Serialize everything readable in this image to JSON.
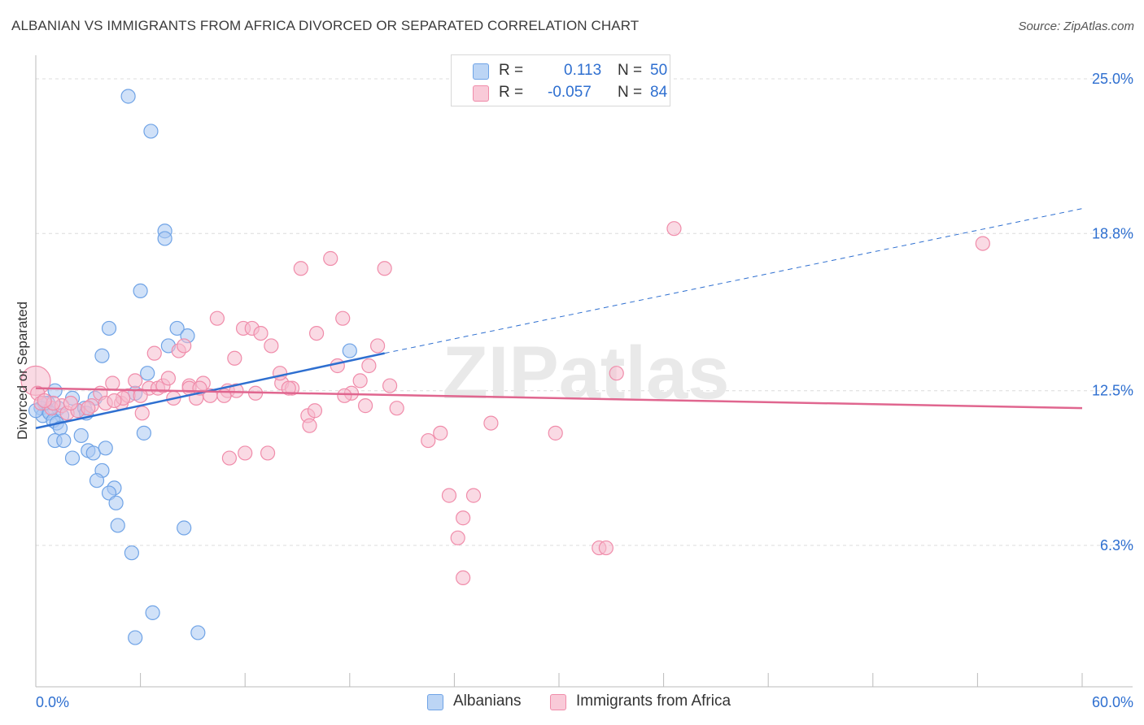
{
  "title": "ALBANIAN VS IMMIGRANTS FROM AFRICA DIVORCED OR SEPARATED CORRELATION CHART",
  "source": "Source: ZipAtlas.com",
  "watermark": "ZIPatlas",
  "legend": {
    "r_label": "R =",
    "n_label": "N =",
    "rows": [
      {
        "r": "0.113",
        "n": "50"
      },
      {
        "r": "-0.057",
        "n": "84"
      }
    ]
  },
  "chart_data": {
    "type": "scatter",
    "ylabel": "Divorced or Separated",
    "xlim": [
      0,
      60
    ],
    "ylim": [
      0,
      26
    ],
    "x_tick_labels": [
      {
        "value": 0,
        "label": "0.0%"
      },
      {
        "value": 60,
        "label": "60.0%"
      }
    ],
    "y_tick_labels": [
      {
        "value": 25.0,
        "label": "25.0%"
      },
      {
        "value": 18.8,
        "label": "18.8%"
      },
      {
        "value": 12.5,
        "label": "12.5%"
      },
      {
        "value": 6.3,
        "label": "6.3%"
      }
    ],
    "series": [
      {
        "name": "Albanians",
        "color": "#6fa3e6",
        "fill": "#a9c9f2",
        "line_color": "#2e6fd0",
        "trend": {
          "x0": 0,
          "y0": 11.0,
          "x1": 20,
          "y1": 14.0,
          "dash_to_x": 60,
          "dash_to_y": 19.8
        },
        "points": [
          [
            5.3,
            24.3
          ],
          [
            6.6,
            22.9
          ],
          [
            7.4,
            18.9
          ],
          [
            7.4,
            18.6
          ],
          [
            6.0,
            16.5
          ],
          [
            4.2,
            15.0
          ],
          [
            8.1,
            15.0
          ],
          [
            7.6,
            14.3
          ],
          [
            8.7,
            14.7
          ],
          [
            3.8,
            13.9
          ],
          [
            18.0,
            14.1
          ],
          [
            6.4,
            13.2
          ],
          [
            1.1,
            12.5
          ],
          [
            0.7,
            12.0
          ],
          [
            2.1,
            12.2
          ],
          [
            3.4,
            12.2
          ],
          [
            5.7,
            12.4
          ],
          [
            0.3,
            11.8
          ],
          [
            0.7,
            11.7
          ],
          [
            1.3,
            11.8
          ],
          [
            0.4,
            11.5
          ],
          [
            0.8,
            11.6
          ],
          [
            1.5,
            11.5
          ],
          [
            2.4,
            11.7
          ],
          [
            0.5,
            12.0
          ],
          [
            1.0,
            11.3
          ],
          [
            1.2,
            11.2
          ],
          [
            1.4,
            11.0
          ],
          [
            2.8,
            11.8
          ],
          [
            2.9,
            11.6
          ],
          [
            1.1,
            10.5
          ],
          [
            1.6,
            10.5
          ],
          [
            2.6,
            10.7
          ],
          [
            6.2,
            10.8
          ],
          [
            3.0,
            10.1
          ],
          [
            3.3,
            10.0
          ],
          [
            4.0,
            10.2
          ],
          [
            2.1,
            9.8
          ],
          [
            3.8,
            9.3
          ],
          [
            3.5,
            8.9
          ],
          [
            4.5,
            8.6
          ],
          [
            4.2,
            8.4
          ],
          [
            4.6,
            8.0
          ],
          [
            4.7,
            7.1
          ],
          [
            8.5,
            7.0
          ],
          [
            5.5,
            6.0
          ],
          [
            6.7,
            3.6
          ],
          [
            5.7,
            2.6
          ],
          [
            9.3,
            2.8
          ],
          [
            0.0,
            11.7
          ]
        ]
      },
      {
        "name": "Immigrants from Africa",
        "color": "#f08caa",
        "fill": "#f6bccd",
        "line_color": "#e0668f",
        "trend": {
          "x0": 0,
          "y0": 12.6,
          "x1": 60,
          "y1": 11.8
        },
        "points": [
          [
            0.0,
            12.9
          ],
          [
            0.1,
            12.4
          ],
          [
            0.3,
            12.0
          ],
          [
            0.9,
            11.8
          ],
          [
            1.5,
            11.9
          ],
          [
            1.8,
            11.6
          ],
          [
            2.4,
            11.7
          ],
          [
            3.2,
            11.9
          ],
          [
            3.7,
            12.4
          ],
          [
            4.0,
            12.0
          ],
          [
            4.4,
            12.8
          ],
          [
            4.9,
            12.0
          ],
          [
            5.3,
            12.3
          ],
          [
            5.7,
            12.9
          ],
          [
            6.1,
            11.6
          ],
          [
            6.5,
            12.6
          ],
          [
            7.0,
            12.6
          ],
          [
            7.3,
            12.7
          ],
          [
            7.6,
            13.0
          ],
          [
            7.9,
            12.2
          ],
          [
            8.2,
            14.1
          ],
          [
            8.5,
            14.3
          ],
          [
            8.8,
            12.7
          ],
          [
            9.2,
            12.2
          ],
          [
            9.6,
            12.8
          ],
          [
            10.0,
            12.3
          ],
          [
            10.4,
            15.4
          ],
          [
            11.0,
            12.5
          ],
          [
            11.4,
            13.8
          ],
          [
            11.9,
            15.0
          ],
          [
            12.4,
            15.0
          ],
          [
            12.9,
            14.8
          ],
          [
            13.5,
            14.3
          ],
          [
            14.1,
            12.8
          ],
          [
            14.7,
            12.6
          ],
          [
            15.2,
            17.4
          ],
          [
            15.6,
            11.5
          ],
          [
            16.1,
            14.8
          ],
          [
            16.9,
            17.8
          ],
          [
            17.3,
            13.5
          ],
          [
            17.6,
            15.4
          ],
          [
            18.1,
            12.4
          ],
          [
            18.6,
            12.9
          ],
          [
            19.1,
            13.5
          ],
          [
            19.6,
            14.3
          ],
          [
            20.0,
            17.4
          ],
          [
            20.3,
            12.7
          ],
          [
            20.7,
            11.8
          ],
          [
            8.8,
            12.6
          ],
          [
            12.0,
            10.0
          ],
          [
            13.3,
            10.0
          ],
          [
            11.1,
            9.8
          ],
          [
            2.0,
            12.0
          ],
          [
            3.0,
            11.8
          ],
          [
            5.0,
            12.2
          ],
          [
            6.8,
            14.0
          ],
          [
            9.4,
            12.6
          ],
          [
            14.5,
            12.6
          ],
          [
            15.7,
            11.1
          ],
          [
            16.0,
            11.7
          ],
          [
            12.6,
            12.4
          ],
          [
            17.7,
            12.3
          ],
          [
            18.9,
            11.9
          ],
          [
            22.5,
            10.5
          ],
          [
            23.2,
            10.8
          ],
          [
            26.1,
            11.2
          ],
          [
            29.8,
            10.8
          ],
          [
            33.3,
            13.2
          ],
          [
            23.7,
            8.3
          ],
          [
            25.1,
            8.3
          ],
          [
            24.5,
            7.4
          ],
          [
            24.2,
            6.6
          ],
          [
            24.5,
            5.0
          ],
          [
            32.3,
            6.2
          ],
          [
            32.7,
            6.2
          ],
          [
            36.6,
            19.0
          ],
          [
            54.3,
            18.4
          ],
          [
            4.5,
            12.1
          ],
          [
            1.0,
            12.0
          ],
          [
            6.0,
            12.3
          ],
          [
            11.5,
            12.5
          ],
          [
            0.5,
            12.1
          ],
          [
            14.0,
            13.2
          ],
          [
            10.8,
            12.3
          ]
        ]
      }
    ],
    "bottom_legend": [
      "Albanians",
      "Immigrants from Africa"
    ]
  }
}
